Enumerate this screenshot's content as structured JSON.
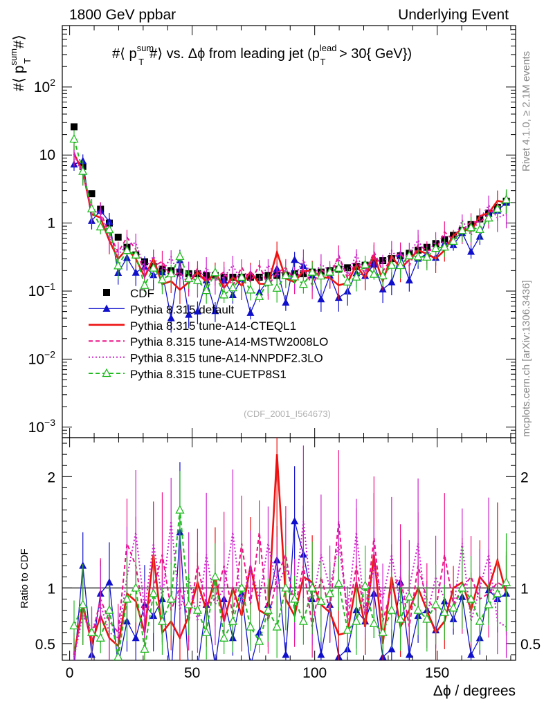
{
  "header": {
    "left": "1800 GeV ppbar",
    "right": "Underlying Event"
  },
  "side_labels": {
    "rivet": "Rivet 4.1.0, ≥ 2.1M events",
    "mcplots": "mcplots.cern.ch [arXiv:1306.3436]"
  },
  "chart_data": {
    "type": "scatter",
    "title_parts": {
      "prefix": "#⟨ p",
      "sup1": "sum",
      "sub1": "T",
      "mid": "#⟩ vs. Δϕ from leading jet  (p",
      "sup2": "lead",
      "sub2": "T",
      "suffix": " > 30{ GeV})"
    },
    "ylabel_parts": {
      "prefix": "#⟨ p",
      "sup": "sum",
      "sub": "T",
      "suffix": "#⟩"
    },
    "xlabel": "Δϕ / degrees",
    "ratio_ylabel": "Ratio to CDF",
    "analysis_id": "(CDF_2001_I564673)",
    "xlim": [
      -3,
      182
    ],
    "ylim": [
      0.0007,
      800
    ],
    "yscale": "log",
    "ratio_ylim": [
      0.35,
      2.35
    ],
    "x_ticks": [
      0,
      50,
      100,
      150
    ],
    "y_ticks": [
      {
        "v": 0.001,
        "label": "10",
        "exp": "−3"
      },
      {
        "v": 0.01,
        "label": "10",
        "exp": "−2"
      },
      {
        "v": 0.1,
        "label": "10",
        "exp": "−1"
      },
      {
        "v": 1,
        "label": "1",
        "exp": ""
      },
      {
        "v": 10,
        "label": "10",
        "exp": ""
      },
      {
        "v": 100,
        "label": "10",
        "exp": "2"
      }
    ],
    "ratio_ticks": [
      {
        "v": 0.5,
        "label": "0.5"
      },
      {
        "v": 1,
        "label": "1"
      },
      {
        "v": 2,
        "label": "2"
      }
    ],
    "x": [
      1.8,
      5.4,
      9.0,
      12.6,
      16.2,
      19.8,
      23.4,
      27.0,
      30.6,
      34.2,
      37.8,
      41.4,
      45.0,
      48.6,
      52.2,
      55.8,
      59.4,
      63.0,
      66.6,
      70.2,
      73.8,
      77.4,
      81.0,
      84.6,
      88.2,
      91.8,
      95.4,
      99.0,
      102.6,
      106.2,
      109.8,
      113.4,
      117.0,
      120.6,
      124.2,
      127.8,
      131.4,
      135.0,
      138.6,
      142.2,
      145.8,
      149.4,
      153.0,
      156.6,
      160.2,
      163.8,
      167.4,
      171.0,
      174.6,
      178.2
    ],
    "series": [
      {
        "name": "CDF",
        "color": "#000000",
        "style": "marker-only",
        "marker": "square",
        "values": [
          26,
          6.8,
          2.7,
          1.6,
          1.0,
          0.62,
          0.44,
          0.34,
          0.27,
          0.23,
          0.21,
          0.2,
          0.19,
          0.18,
          0.18,
          0.17,
          0.17,
          0.16,
          0.16,
          0.16,
          0.16,
          0.16,
          0.17,
          0.17,
          0.17,
          0.18,
          0.18,
          0.19,
          0.19,
          0.2,
          0.21,
          0.22,
          0.23,
          0.24,
          0.26,
          0.28,
          0.3,
          0.33,
          0.36,
          0.4,
          0.44,
          0.5,
          0.57,
          0.66,
          0.78,
          0.95,
          1.15,
          1.4,
          1.7,
          2.1
        ]
      },
      {
        "name": "Pythia 8.315 default",
        "color": "#1010cc",
        "style": "solid",
        "marker": "triangle-filled",
        "ratio": [
          0.28,
          1.2,
          0.4,
          0.95,
          1.05,
          0.3,
          0.7,
          0.55,
          0.85,
          0.75,
          0.9,
          0.2,
          1.5,
          0.25,
          0.28,
          0.85,
          0.3,
          0.9,
          0.55,
          0.95,
          0.3,
          0.6,
          0.85,
          1.25,
          0.4,
          1.6,
          1.3,
          0.9,
          0.4,
          0.85,
          0.38,
          0.45,
          0.8,
          0.7,
          0.95,
          0.38,
          0.45,
          1.05,
          0.4,
          0.75,
          0.8,
          0.62,
          0.88,
          0.72,
          0.92,
          0.4,
          0.55,
          0.98,
          0.9,
          0.95
        ]
      },
      {
        "name": "Pythia 8.315 tune-A14-CTEQL1",
        "color": "#ee1111",
        "style": "solid",
        "marker": "none",
        "ratio": [
          0.4,
          0.85,
          0.5,
          0.75,
          0.55,
          0.48,
          0.95,
          0.88,
          0.6,
          1.3,
          0.6,
          0.7,
          0.55,
          0.75,
          1.05,
          0.8,
          1.1,
          0.7,
          1.0,
          0.75,
          1.2,
          0.8,
          0.75,
          2.2,
          0.9,
          0.75,
          1.1,
          1.05,
          0.85,
          0.78,
          0.58,
          0.6,
          1.05,
          0.65,
          1.3,
          0.5,
          1.1,
          0.65,
          0.8,
          1.0,
          0.8,
          0.6,
          0.7,
          1.0,
          1.05,
          0.8,
          1.1,
          1.0,
          1.25,
          0.95
        ]
      },
      {
        "name": "Pythia 8.315 tune-A14-MSTW2008LO",
        "color": "#ee1188",
        "style": "dashed",
        "marker": "none",
        "ratio": [
          0.42,
          0.8,
          0.55,
          0.9,
          0.7,
          0.6,
          1.4,
          1.2,
          0.7,
          1.0,
          1.3,
          0.8,
          1.0,
          0.7,
          1.2,
          0.85,
          0.9,
          1.2,
          0.75,
          1.4,
          0.85,
          1.5,
          0.7,
          1.1,
          1.3,
          0.8,
          1.2,
          0.65,
          1.1,
          0.8,
          1.6,
          0.7,
          1.2,
          0.75,
          1.45,
          0.7,
          1.0,
          1.1,
          0.65,
          1.2,
          0.9,
          0.8,
          1.3,
          0.85,
          1.0,
          1.1,
          0.9,
          0.95,
          1.05,
          1.0
        ]
      },
      {
        "name": "Pythia 8.315 tune-A14-NNPDF2.3LO",
        "color": "#cc22cc",
        "style": "dotted",
        "marker": "none",
        "ratio": [
          0.38,
          0.75,
          0.6,
          0.85,
          0.6,
          0.55,
          1.1,
          1.5,
          0.8,
          1.4,
          0.9,
          1.6,
          0.8,
          1.1,
          0.7,
          1.3,
          0.85,
          1.0,
          1.5,
          0.85,
          1.2,
          0.9,
          1.4,
          1.0,
          1.2,
          0.9,
          1.6,
          0.85,
          1.3,
          1.0,
          1.4,
          0.8,
          1.5,
          0.75,
          1.2,
          0.9,
          1.3,
          0.85,
          1.0,
          1.4,
          0.75,
          1.1,
          0.9,
          0.8,
          1.4,
          0.7,
          1.0,
          1.3,
          0.7,
          0.65
        ]
      },
      {
        "name": "Pythia 8.315 tune-CUETP8S1",
        "color": "#22bb22",
        "style": "dashed",
        "marker": "triangle-open",
        "ratio": [
          0.66,
          0.85,
          0.6,
          0.55,
          0.8,
          0.38,
          0.9,
          1.0,
          0.45,
          0.95,
          0.7,
          0.9,
          1.7,
          0.85,
          0.8,
          0.6,
          1.1,
          0.55,
          0.7,
          1.0,
          0.65,
          0.52,
          0.8,
          0.65,
          1.0,
          0.9,
          0.7,
          1.0,
          0.88,
          0.95,
          1.04,
          0.62,
          0.7,
          1.02,
          0.68,
          0.6,
          0.8,
          0.72,
          0.92,
          0.8,
          0.72,
          0.85,
          0.78,
          0.82,
          1.0,
          0.9,
          0.7,
          0.85,
          0.95,
          1.05
        ]
      }
    ]
  }
}
